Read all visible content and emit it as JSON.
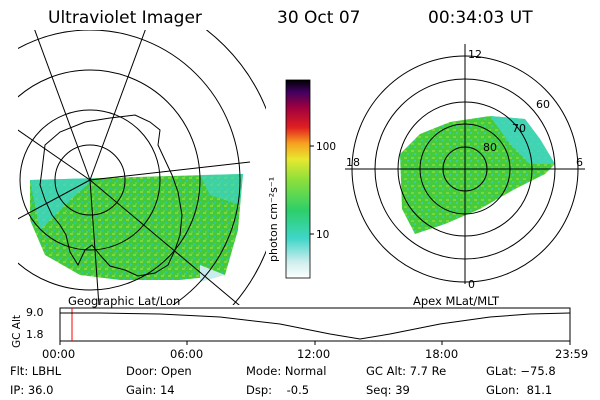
{
  "header": {
    "title": "Ultraviolet Imager",
    "date": "30 Oct 07",
    "time": "00:34:03 UT"
  },
  "left_map": {
    "caption": "Geographic Lat/Lon"
  },
  "right_map": {
    "caption": "Apex MLat/MLT",
    "mlt_labels": {
      "top": "12",
      "left": "18",
      "right": "6",
      "bottom": "0"
    },
    "lat_labels": [
      "60",
      "70",
      "80"
    ]
  },
  "colorbar": {
    "unit_label": "photon cm⁻²s⁻¹",
    "tick_labels": [
      "100",
      "10"
    ]
  },
  "altitude_plot": {
    "ylabel": "GC Alt",
    "yticks": [
      "9.0",
      "1.8"
    ],
    "xticks": [
      "00:00",
      "06:00",
      "12:00",
      "18:00",
      "23:59"
    ],
    "marker_color": "#ff0000"
  },
  "info": {
    "flt": "Flt: LBHL",
    "ip": "IP: 36.0",
    "door": "Door: Open",
    "gain": "Gain: 14",
    "mode": "Mode: Normal",
    "dsp": "Dsp:    -0.5",
    "gc_alt": "GC Alt: 7.7 Re",
    "seq": "Seq: 39",
    "glat": "GLat: −75.8",
    "glon": "GLon:  81.1"
  }
}
